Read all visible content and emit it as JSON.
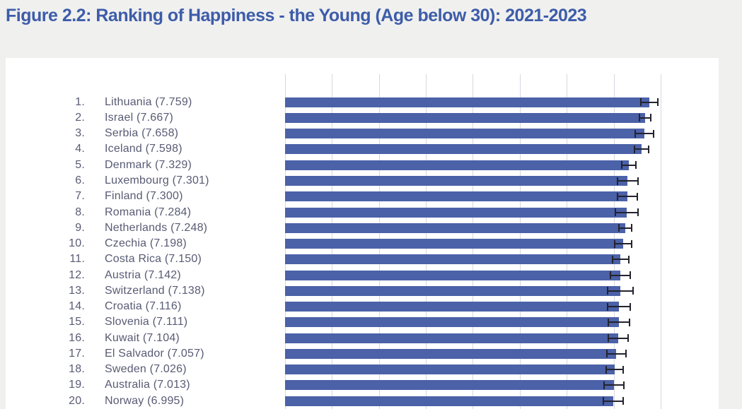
{
  "page": {
    "background_color": "#f0f0ef",
    "panel_color": "#ffffff"
  },
  "header": {
    "title": "Figure 2.2: Ranking of Happiness - the Young (Age below 30): 2021-2023",
    "title_color": "#3d5ca9"
  },
  "chart_data": {
    "type": "bar",
    "orientation": "horizontal",
    "title": "Figure 2.2: Ranking of Happiness - the Young (Age below 30): 2021-2023",
    "xlabel": "",
    "ylabel": "",
    "x_axis": {
      "min": 0,
      "max": 8,
      "gridline_interval": 1,
      "gridlines_visible": true,
      "tick_labels_visible": false
    },
    "legend": "none",
    "error_bars": "95% confidence interval whiskers at bar ends",
    "colors": {
      "bar": "#4b61a8",
      "error_bar": "#23232e",
      "gridline": "#d7d8e0",
      "label": "#585b74"
    },
    "rows": [
      {
        "rank_label": "1.",
        "country": "Lithuania",
        "score": "7.759",
        "value": 7.759,
        "ci": 0.18
      },
      {
        "rank_label": "2.",
        "country": "Israel",
        "score": "7.667",
        "value": 7.667,
        "ci": 0.12
      },
      {
        "rank_label": "3.",
        "country": "Serbia",
        "score": "7.658",
        "value": 7.658,
        "ci": 0.2
      },
      {
        "rank_label": "4.",
        "country": "Iceland",
        "score": "7.598",
        "value": 7.598,
        "ci": 0.15
      },
      {
        "rank_label": "5.",
        "country": "Denmark",
        "score": "7.329",
        "value": 7.329,
        "ci": 0.15
      },
      {
        "rank_label": "6.",
        "country": "Luxembourg",
        "score": "7.301",
        "value": 7.301,
        "ci": 0.22
      },
      {
        "rank_label": "7.",
        "country": "Finland",
        "score": "7.300",
        "value": 7.3,
        "ci": 0.21
      },
      {
        "rank_label": "8.",
        "country": "Romania",
        "score": "7.284",
        "value": 7.284,
        "ci": 0.24
      },
      {
        "rank_label": "9.",
        "country": "Netherlands",
        "score": "7.248",
        "value": 7.248,
        "ci": 0.14
      },
      {
        "rank_label": "10.",
        "country": "Czechia",
        "score": "7.198",
        "value": 7.198,
        "ci": 0.18
      },
      {
        "rank_label": "11.",
        "country": "Costa Rica",
        "score": "7.150",
        "value": 7.15,
        "ci": 0.17
      },
      {
        "rank_label": "12.",
        "country": "Austria",
        "score": "7.142",
        "value": 7.142,
        "ci": 0.21
      },
      {
        "rank_label": "13.",
        "country": "Switzerland",
        "score": "7.138",
        "value": 7.138,
        "ci": 0.27
      },
      {
        "rank_label": "14.",
        "country": "Croatia",
        "score": "7.116",
        "value": 7.116,
        "ci": 0.24
      },
      {
        "rank_label": "15.",
        "country": "Slovenia",
        "score": "7.111",
        "value": 7.111,
        "ci": 0.23
      },
      {
        "rank_label": "16.",
        "country": "Kuwait",
        "score": "7.104",
        "value": 7.104,
        "ci": 0.21
      },
      {
        "rank_label": "17.",
        "country": "El Salvador",
        "score": "7.057",
        "value": 7.057,
        "ci": 0.2
      },
      {
        "rank_label": "18.",
        "country": "Sweden",
        "score": "7.026",
        "value": 7.026,
        "ci": 0.18
      },
      {
        "rank_label": "19.",
        "country": "Australia",
        "score": "7.013",
        "value": 7.013,
        "ci": 0.21
      },
      {
        "rank_label": "20.",
        "country": "Norway",
        "score": "6.995",
        "value": 6.995,
        "ci": 0.21
      }
    ]
  }
}
